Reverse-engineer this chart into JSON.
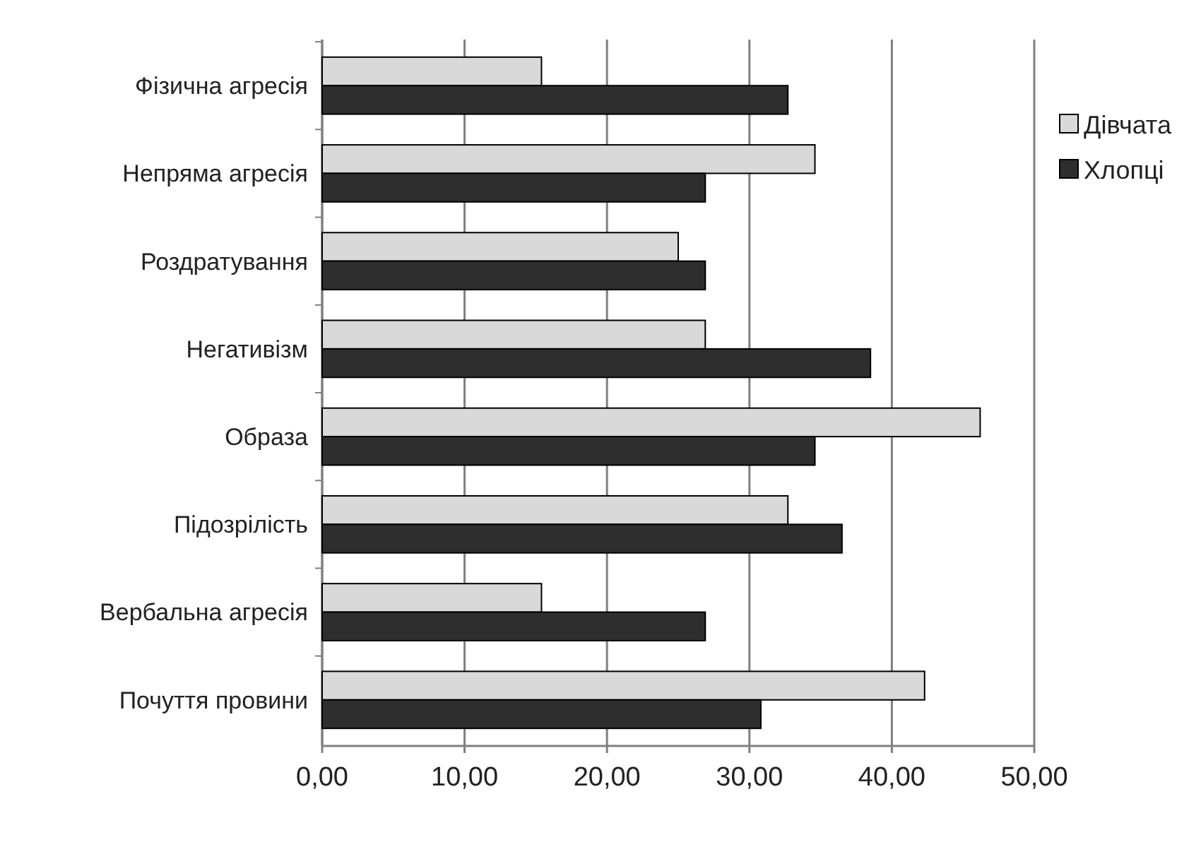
{
  "chart_data": {
    "type": "bar",
    "orientation": "horizontal",
    "categories": [
      "Фізична агресія",
      "Непряма агресія",
      "Роздратування",
      "Негативізм",
      "Образа",
      "Підозрілість",
      "Вербальна агресія",
      "Почуття провини"
    ],
    "series": [
      {
        "name": "Дівчата",
        "color": "#d9d9d9",
        "values": [
          15.4,
          34.6,
          25.0,
          26.9,
          46.2,
          32.7,
          15.4,
          42.3
        ]
      },
      {
        "name": "Хлопці",
        "color": "#2e2e2e",
        "values": [
          32.7,
          26.9,
          26.9,
          38.5,
          34.6,
          36.5,
          26.9,
          30.8
        ]
      }
    ],
    "xlim": [
      0,
      50
    ],
    "xticks": [
      {
        "value": 0,
        "label": "0,00"
      },
      {
        "value": 10,
        "label": "10,00"
      },
      {
        "value": 20,
        "label": "20,00"
      },
      {
        "value": 30,
        "label": "30,00"
      },
      {
        "value": 40,
        "label": "40,00"
      },
      {
        "value": 50,
        "label": "50,00"
      }
    ],
    "grid": "x",
    "legend": "right"
  }
}
